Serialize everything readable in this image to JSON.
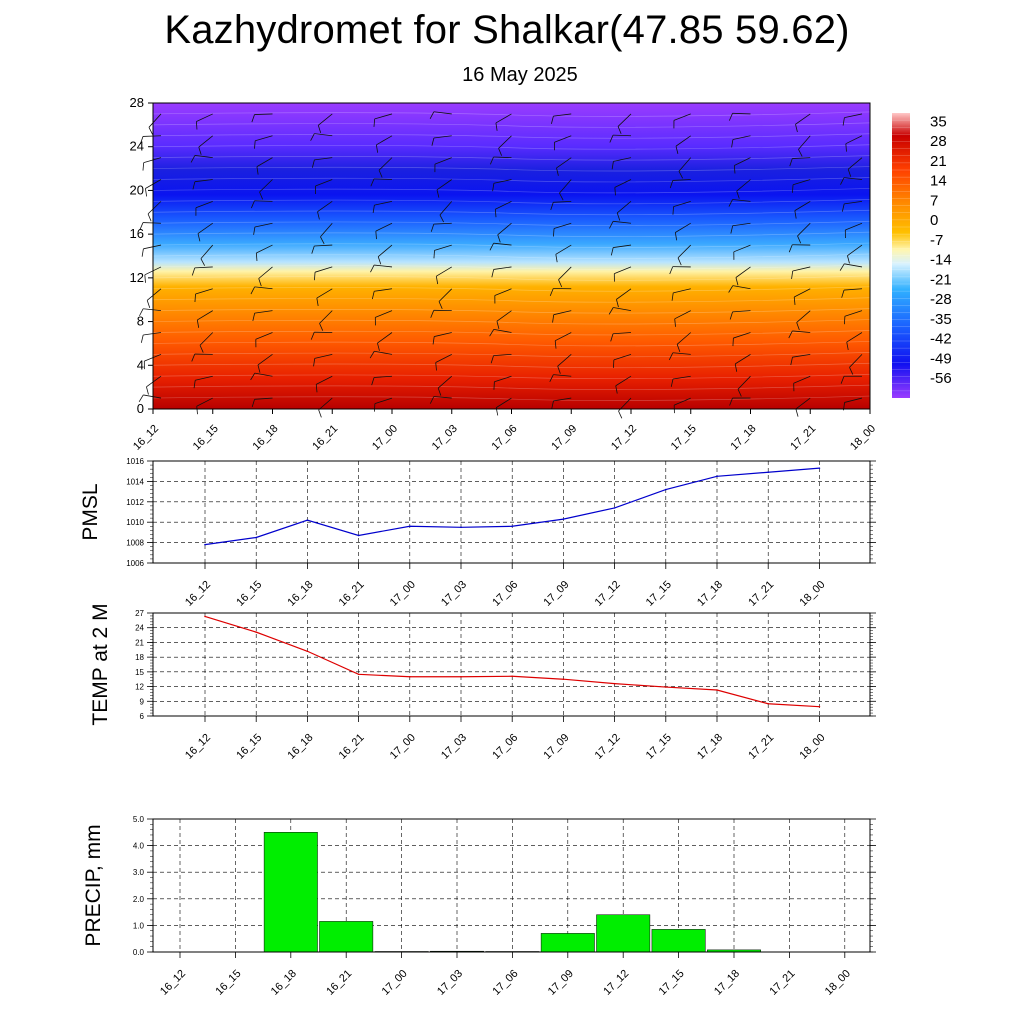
{
  "title": "Kazhydromet for Shalkar(47.85 59.62)",
  "subtitle": "16 May 2025",
  "colors": {
    "pmsl_line": "#0000cc",
    "temp_line": "#dd0000",
    "precip_bar": "#00ee00",
    "grid": "#000000"
  },
  "chart_data": [
    {
      "type": "heatmap",
      "name": "cross-section",
      "x": [
        "16_12",
        "16_15",
        "16_18",
        "16_21",
        "17_00",
        "17_03",
        "17_06",
        "17_09",
        "17_12",
        "17_15",
        "17_18",
        "17_21",
        "18_00"
      ],
      "yticks": [
        "0",
        "4",
        "8",
        "12",
        "16",
        "20",
        "24",
        "28"
      ],
      "ylim": [
        0,
        28
      ],
      "colorbar_labels": [
        "35",
        "28",
        "21",
        "14",
        "7",
        "0",
        "-7",
        "-14",
        "-21",
        "-28",
        "-35",
        "-42",
        "-49",
        "-56"
      ],
      "colorbar_range": [
        -63,
        38
      ],
      "overlay": "wind barbs"
    },
    {
      "type": "line",
      "name": "pmsl",
      "ylabel": "PMSL",
      "categories": [
        "16_12",
        "16_15",
        "16_18",
        "16_21",
        "17_00",
        "17_03",
        "17_06",
        "17_09",
        "17_12",
        "17_15",
        "17_18",
        "17_21",
        "18_00"
      ],
      "values": [
        1007.8,
        1008.5,
        1010.2,
        1008.7,
        1009.6,
        1009.5,
        1009.6,
        1010.3,
        1011.4,
        1013.2,
        1014.5,
        1014.9,
        1015.3
      ],
      "yticks": [
        "1006",
        "1008",
        "1010",
        "1012",
        "1014",
        "1016"
      ],
      "ylim": [
        1006,
        1016
      ],
      "grid": true
    },
    {
      "type": "line",
      "name": "temp",
      "ylabel": "TEMP at 2 M",
      "categories": [
        "16_12",
        "16_15",
        "16_18",
        "16_21",
        "17_00",
        "17_03",
        "17_06",
        "17_09",
        "17_12",
        "17_15",
        "17_18",
        "17_21",
        "18_00"
      ],
      "values": [
        26.3,
        23.1,
        19.2,
        14.5,
        14.0,
        14.0,
        14.1,
        13.5,
        12.6,
        11.9,
        11.3,
        8.5,
        7.9
      ],
      "yticks": [
        "6",
        "9",
        "12",
        "15",
        "18",
        "21",
        "24",
        "27"
      ],
      "ylim": [
        6,
        27
      ],
      "grid": true
    },
    {
      "type": "bar",
      "name": "precip",
      "ylabel": "PRECIP, mm",
      "categories": [
        "16_12",
        "16_15",
        "16_18",
        "16_21",
        "17_00",
        "17_03",
        "17_06",
        "17_09",
        "17_12",
        "17_15",
        "17_18",
        "17_21",
        "18_00"
      ],
      "values": [
        0,
        0,
        4.5,
        1.15,
        0.02,
        0.03,
        0.02,
        0.7,
        1.4,
        0.85,
        0.08,
        0,
        0
      ],
      "yticks": [
        "0.0",
        "1.0",
        "2.0",
        "3.0",
        "4.0",
        "5.0"
      ],
      "ylim": [
        0,
        5
      ],
      "grid": true
    }
  ]
}
